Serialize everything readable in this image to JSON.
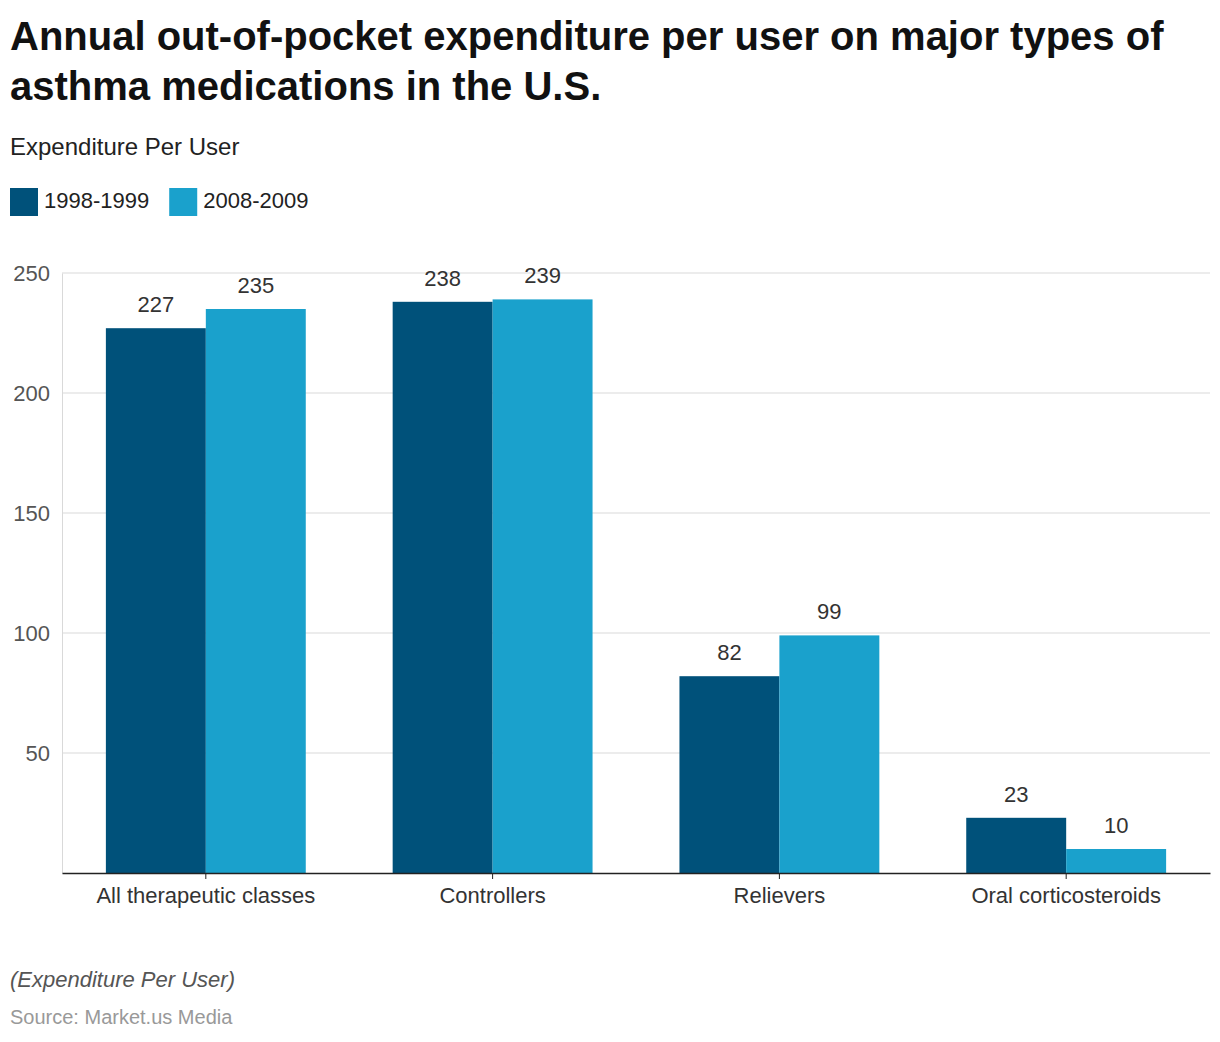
{
  "chart_data": {
    "type": "bar",
    "title": "Annual out-of-pocket expenditure per user on major types of asthma medications in the U.S.",
    "subtitle": "Expenditure Per User",
    "caption": "(Expenditure Per User)",
    "source": "Source: Market.us Media",
    "categories": [
      "All therapeutic classes",
      "Controllers",
      "Relievers",
      "Oral corticosteroids"
    ],
    "series": [
      {
        "name": "1998-1999",
        "color": "#00517a",
        "values": [
          227,
          238,
          82,
          23
        ]
      },
      {
        "name": "2008-2009",
        "color": "#1aa1cc",
        "values": [
          235,
          239,
          99,
          10
        ]
      }
    ],
    "ylim": [
      0,
      250
    ],
    "yticks": [
      50,
      100,
      150,
      200,
      250
    ],
    "grid": true,
    "data_labels": true,
    "legend": "top-left"
  }
}
